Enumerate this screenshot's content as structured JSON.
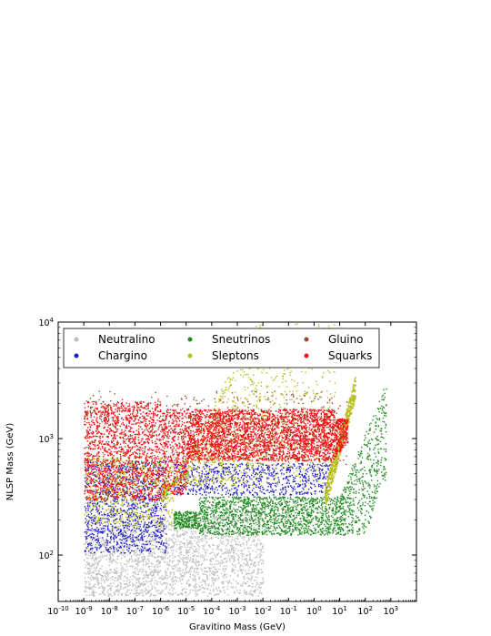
{
  "chart_data": {
    "type": "scatter",
    "title": "",
    "xlabel": "Gravitino Mass (GeV)",
    "ylabel": "NLSP Mass (GeV)",
    "xscale": "log",
    "yscale": "log",
    "xlim": [
      1e-10,
      10000.0
    ],
    "ylim": [
      40,
      10000
    ],
    "grid": false,
    "legend_placement": "top",
    "x_ticks": [
      {
        "base": "10",
        "exp": "-10"
      },
      {
        "base": "10",
        "exp": "-9"
      },
      {
        "base": "10",
        "exp": "-8"
      },
      {
        "base": "10",
        "exp": "-7"
      },
      {
        "base": "10",
        "exp": "-6"
      },
      {
        "base": "10",
        "exp": "-5"
      },
      {
        "base": "10",
        "exp": "-4"
      },
      {
        "base": "10",
        "exp": "-3"
      },
      {
        "base": "10",
        "exp": "-2"
      },
      {
        "base": "10",
        "exp": "-1"
      },
      {
        "base": "10",
        "exp": "0"
      },
      {
        "base": "10",
        "exp": "1"
      },
      {
        "base": "10",
        "exp": "2"
      },
      {
        "base": "10",
        "exp": "3"
      }
    ],
    "y_ticks": [
      {
        "base": "10",
        "exp": "2"
      },
      {
        "base": "10",
        "exp": "3"
      },
      {
        "base": "10",
        "exp": "4"
      }
    ],
    "series": [
      {
        "name": "Neutralino",
        "color": "#bdbdbd",
        "region": {
          "x": [
            1e-09,
            0.01
          ],
          "y": [
            45,
            160
          ]
        }
      },
      {
        "name": "Chargino",
        "color": "#1f1fc8",
        "region": {
          "x": [
            1e-09,
            3e-06
          ],
          "y": [
            105,
            700
          ]
        }
      },
      {
        "name": "Sneutrinos",
        "color": "#1f8a1f",
        "region": {
          "x": [
            3e-06,
            600
          ],
          "y": [
            140,
            800
          ]
        }
      },
      {
        "name": "Sleptons",
        "color": "#b8be1e",
        "region": {
          "x": [
            1e-06,
            40
          ],
          "y": [
            230,
            1500
          ]
        }
      },
      {
        "name": "Gluino",
        "color": "#9a4a2a",
        "region": {
          "x": [
            1e-09,
            10
          ],
          "y": [
            1000,
            2500
          ]
        }
      },
      {
        "name": "Squarks",
        "color": "#ee1111",
        "region": {
          "x": [
            1e-09,
            20
          ],
          "y": [
            400,
            2000
          ]
        }
      }
    ]
  }
}
